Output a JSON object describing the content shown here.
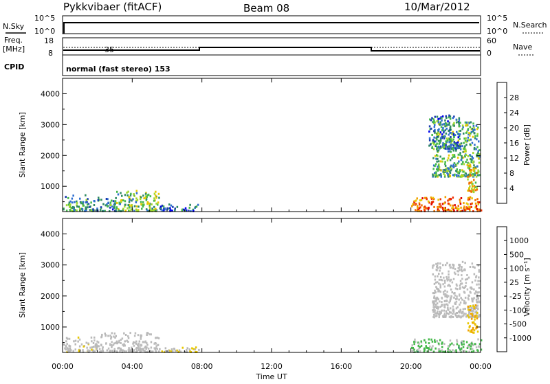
{
  "header": {
    "station": "Pykkvibaer (fitACF)",
    "beam": "Beam 08",
    "date": "10/Mar/2012"
  },
  "nsky_panel": {
    "left_label": "N.Sky",
    "left_ticks": [
      "10^5",
      "10^0"
    ],
    "right_label": "N.Search",
    "right_ticks": [
      "10^5",
      "10^0"
    ]
  },
  "freq_panel": {
    "left_label_1": "Freq.",
    "left_label_2": "[MHz]",
    "left_ticks": [
      "18",
      "8"
    ],
    "right_label": "Nave",
    "right_ticks": [
      "60",
      "0"
    ],
    "marker": "35"
  },
  "cpid_panel": {
    "label": "CPID",
    "text": "normal (fast stereo) 153"
  },
  "colors": {
    "power_scale": [
      "#0000ee",
      "#1a3bb0",
      "#2e6fd0",
      "#2f8a62",
      "#44b84a",
      "#a0d82e",
      "#e8c800",
      "#f0a000",
      "#f07000",
      "#f03000",
      "#e00000"
    ],
    "velocity_scale": [
      "#e00000",
      "#f07000",
      "#f0a000",
      "#e8c800",
      "#b8b8b8",
      "#bdbdbd",
      "#44b84a",
      "#2f8a62",
      "#2e6fd0",
      "#1a3bb0"
    ]
  },
  "chart_data": [
    {
      "type": "heatmap",
      "quantity": "Power",
      "ylabel": "Slant Range [km]",
      "yticks": [
        1000,
        2000,
        3000,
        4000
      ],
      "ylim": [
        180,
        4500
      ],
      "colorbar": {
        "label": "Power [dB]",
        "ticks": [
          "4",
          "8",
          "12",
          "16",
          "20",
          "24",
          "28"
        ],
        "range": [
          0,
          32
        ]
      },
      "clusters": [
        {
          "t": [
            0.0,
            1.6
          ],
          "r": [
            180,
            700
          ],
          "v": 10
        },
        {
          "t": [
            1.6,
            3.0
          ],
          "r": [
            180,
            650
          ],
          "v": 8
        },
        {
          "t": [
            3.0,
            5.5
          ],
          "r": [
            180,
            850
          ],
          "v": 14
        },
        {
          "t": [
            5.5,
            7.8
          ],
          "r": [
            180,
            400
          ],
          "v": 6
        },
        {
          "t": [
            20.0,
            24.0
          ],
          "r": [
            180,
            650
          ],
          "v": 26
        },
        {
          "t": [
            21.2,
            23.9
          ],
          "r": [
            1300,
            3100
          ],
          "v": 12
        },
        {
          "t": [
            21.0,
            22.8
          ],
          "r": [
            2200,
            3300
          ],
          "v": 8
        },
        {
          "t": [
            23.2,
            23.8
          ],
          "r": [
            800,
            1700
          ],
          "v": 20
        }
      ]
    },
    {
      "type": "heatmap",
      "quantity": "Velocity",
      "xlabel": "Time UT",
      "ylabel": "Slant Range [km]",
      "yticks": [
        1000,
        2000,
        3000,
        4000
      ],
      "ylim": [
        180,
        4500
      ],
      "xticks": [
        "00:00",
        "04:00",
        "08:00",
        "12:00",
        "16:00",
        "20:00",
        "00:00"
      ],
      "xlim": [
        0,
        24
      ],
      "colorbar": {
        "label": "Velocity [m s⁻¹]",
        "ticks": [
          "-1000",
          "-500",
          "-100",
          "-25",
          "25",
          "100",
          "500",
          "1000"
        ]
      },
      "clusters": [
        {
          "t": [
            0.0,
            2.0
          ],
          "r": [
            180,
            650
          ],
          "v": -100
        },
        {
          "t": [
            2.0,
            5.5
          ],
          "r": [
            180,
            800
          ],
          "v": 0
        },
        {
          "t": [
            5.5,
            7.8
          ],
          "r": [
            180,
            350
          ],
          "v": -200
        },
        {
          "t": [
            20.0,
            24.0
          ],
          "r": [
            180,
            600
          ],
          "v": 300
        },
        {
          "t": [
            21.2,
            23.9
          ],
          "r": [
            1300,
            3100
          ],
          "v": 0
        },
        {
          "t": [
            23.2,
            23.8
          ],
          "r": [
            800,
            1700
          ],
          "v": -500
        }
      ]
    }
  ]
}
